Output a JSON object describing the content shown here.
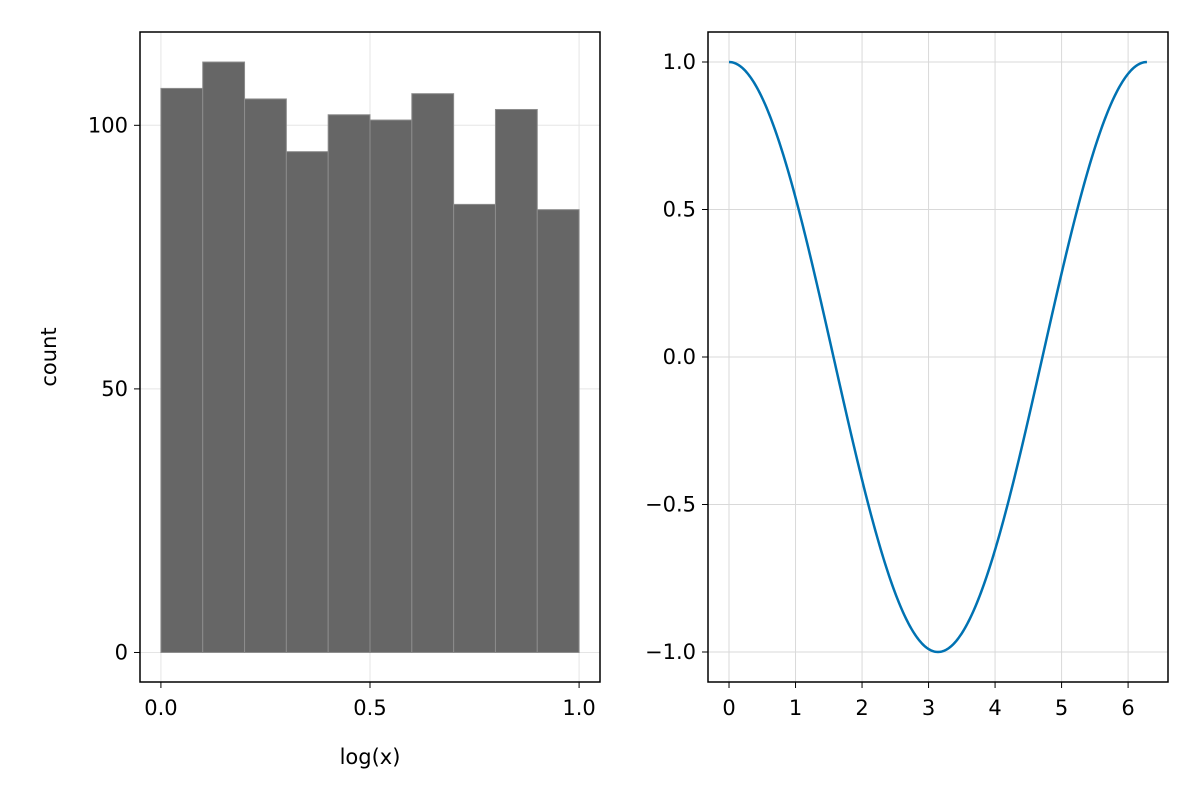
{
  "chart_data": [
    {
      "type": "bar",
      "subtype": "histogram",
      "xlabel": "log(x)",
      "ylabel": "count",
      "bin_edges": [
        0.0,
        0.1,
        0.2,
        0.3,
        0.4,
        0.5,
        0.6,
        0.7,
        0.8,
        0.9,
        1.0
      ],
      "values": [
        107,
        112,
        105,
        95,
        102,
        101,
        106,
        85,
        103,
        84
      ],
      "xlim": [
        -0.05,
        1.05
      ],
      "ylim": [
        -5.6,
        117.7
      ],
      "xticks": [
        0.0,
        0.5,
        1.0
      ],
      "xtick_labels": [
        "0.0",
        "0.5",
        "1.0"
      ],
      "yticks": [
        0,
        50,
        100
      ],
      "ytick_labels": [
        "0",
        "50",
        "100"
      ],
      "grid": true,
      "bar_color": "#666666",
      "bar_edge_color": "#8c8c8c"
    },
    {
      "type": "line",
      "function": "cos(x)",
      "x_range": [
        0,
        6.283
      ],
      "xlim": [
        -0.316,
        6.6
      ],
      "ylim": [
        -1.1017,
        1.1017
      ],
      "xticks": [
        0,
        1,
        2,
        3,
        4,
        5,
        6
      ],
      "xtick_labels": [
        "0",
        "1",
        "2",
        "3",
        "4",
        "5",
        "6"
      ],
      "yticks": [
        -1.0,
        -0.5,
        0.0,
        0.5,
        1.0
      ],
      "ytick_labels": [
        "−1.0",
        "−0.5",
        "0.0",
        "0.5",
        "1.0"
      ],
      "grid": true,
      "line_color": "#0072b2"
    }
  ]
}
